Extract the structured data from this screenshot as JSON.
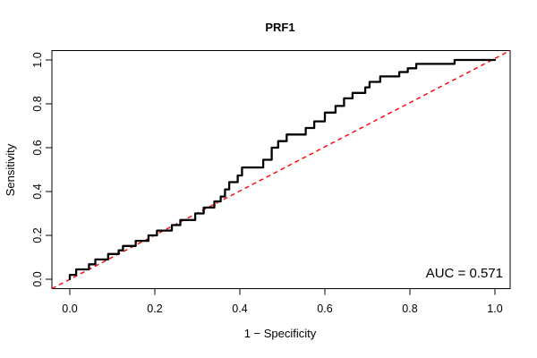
{
  "title": "PRF1",
  "axes": {
    "x_label": "1 − Specificity",
    "y_label": "Sensitivity",
    "x_ticks": [
      "0.0",
      "0.2",
      "0.4",
      "0.6",
      "0.8",
      "1.0"
    ],
    "y_ticks": [
      "0.0",
      "0.2",
      "0.4",
      "0.6",
      "0.8",
      "1.0"
    ]
  },
  "annotations": {
    "auc_text": "AUC = 0.571"
  },
  "colors": {
    "curve": "#000000",
    "diagonal": "#FF0000",
    "axis": "#000000",
    "text": "#000000",
    "background": "#FFFFFF"
  },
  "chart_data": {
    "type": "line",
    "subtype": "roc-step-curve",
    "title": "PRF1",
    "xlabel": "1 − Specificity",
    "ylabel": "Sensitivity",
    "xlim": [
      0,
      1
    ],
    "ylim": [
      0,
      1
    ],
    "x_tick_values": [
      0,
      0.2,
      0.4,
      0.6,
      0.8,
      1.0
    ],
    "y_tick_values": [
      0,
      0.2,
      0.4,
      0.6,
      0.8,
      1.0
    ],
    "grid": false,
    "legend": "none",
    "auc": 0.571,
    "reference_line": {
      "type": "diagonal",
      "from": [
        0,
        0
      ],
      "to": [
        1,
        1
      ],
      "style": "dashed",
      "color": "#FF0000"
    },
    "series": [
      {
        "name": "ROC curve",
        "color": "#000000",
        "step": true,
        "points": [
          [
            0,
            0
          ],
          [
            0,
            0.02
          ],
          [
            0.015,
            0.02
          ],
          [
            0.015,
            0.045
          ],
          [
            0.045,
            0.045
          ],
          [
            0.045,
            0.068
          ],
          [
            0.06,
            0.068
          ],
          [
            0.06,
            0.09
          ],
          [
            0.09,
            0.09
          ],
          [
            0.09,
            0.115
          ],
          [
            0.115,
            0.115
          ],
          [
            0.115,
            0.132
          ],
          [
            0.125,
            0.132
          ],
          [
            0.125,
            0.152
          ],
          [
            0.155,
            0.152
          ],
          [
            0.155,
            0.175
          ],
          [
            0.185,
            0.175
          ],
          [
            0.185,
            0.2
          ],
          [
            0.205,
            0.2
          ],
          [
            0.205,
            0.222
          ],
          [
            0.24,
            0.222
          ],
          [
            0.24,
            0.247
          ],
          [
            0.26,
            0.247
          ],
          [
            0.26,
            0.27
          ],
          [
            0.295,
            0.27
          ],
          [
            0.295,
            0.3
          ],
          [
            0.315,
            0.3
          ],
          [
            0.315,
            0.327
          ],
          [
            0.34,
            0.327
          ],
          [
            0.34,
            0.355
          ],
          [
            0.355,
            0.355
          ],
          [
            0.355,
            0.377
          ],
          [
            0.365,
            0.377
          ],
          [
            0.365,
            0.41
          ],
          [
            0.375,
            0.41
          ],
          [
            0.375,
            0.443
          ],
          [
            0.395,
            0.443
          ],
          [
            0.395,
            0.473
          ],
          [
            0.405,
            0.473
          ],
          [
            0.405,
            0.51
          ],
          [
            0.455,
            0.51
          ],
          [
            0.455,
            0.545
          ],
          [
            0.475,
            0.545
          ],
          [
            0.475,
            0.6
          ],
          [
            0.49,
            0.6
          ],
          [
            0.49,
            0.63
          ],
          [
            0.51,
            0.63
          ],
          [
            0.51,
            0.66
          ],
          [
            0.555,
            0.66
          ],
          [
            0.555,
            0.69
          ],
          [
            0.575,
            0.69
          ],
          [
            0.575,
            0.72
          ],
          [
            0.6,
            0.72
          ],
          [
            0.6,
            0.76
          ],
          [
            0.625,
            0.76
          ],
          [
            0.625,
            0.79
          ],
          [
            0.645,
            0.79
          ],
          [
            0.645,
            0.825
          ],
          [
            0.665,
            0.825
          ],
          [
            0.665,
            0.85
          ],
          [
            0.695,
            0.85
          ],
          [
            0.695,
            0.875
          ],
          [
            0.705,
            0.875
          ],
          [
            0.705,
            0.9
          ],
          [
            0.73,
            0.9
          ],
          [
            0.73,
            0.925
          ],
          [
            0.775,
            0.925
          ],
          [
            0.775,
            0.945
          ],
          [
            0.795,
            0.945
          ],
          [
            0.795,
            0.962
          ],
          [
            0.815,
            0.962
          ],
          [
            0.815,
            0.982
          ],
          [
            0.905,
            0.982
          ],
          [
            0.905,
            1
          ],
          [
            1,
            1
          ]
        ]
      }
    ]
  }
}
